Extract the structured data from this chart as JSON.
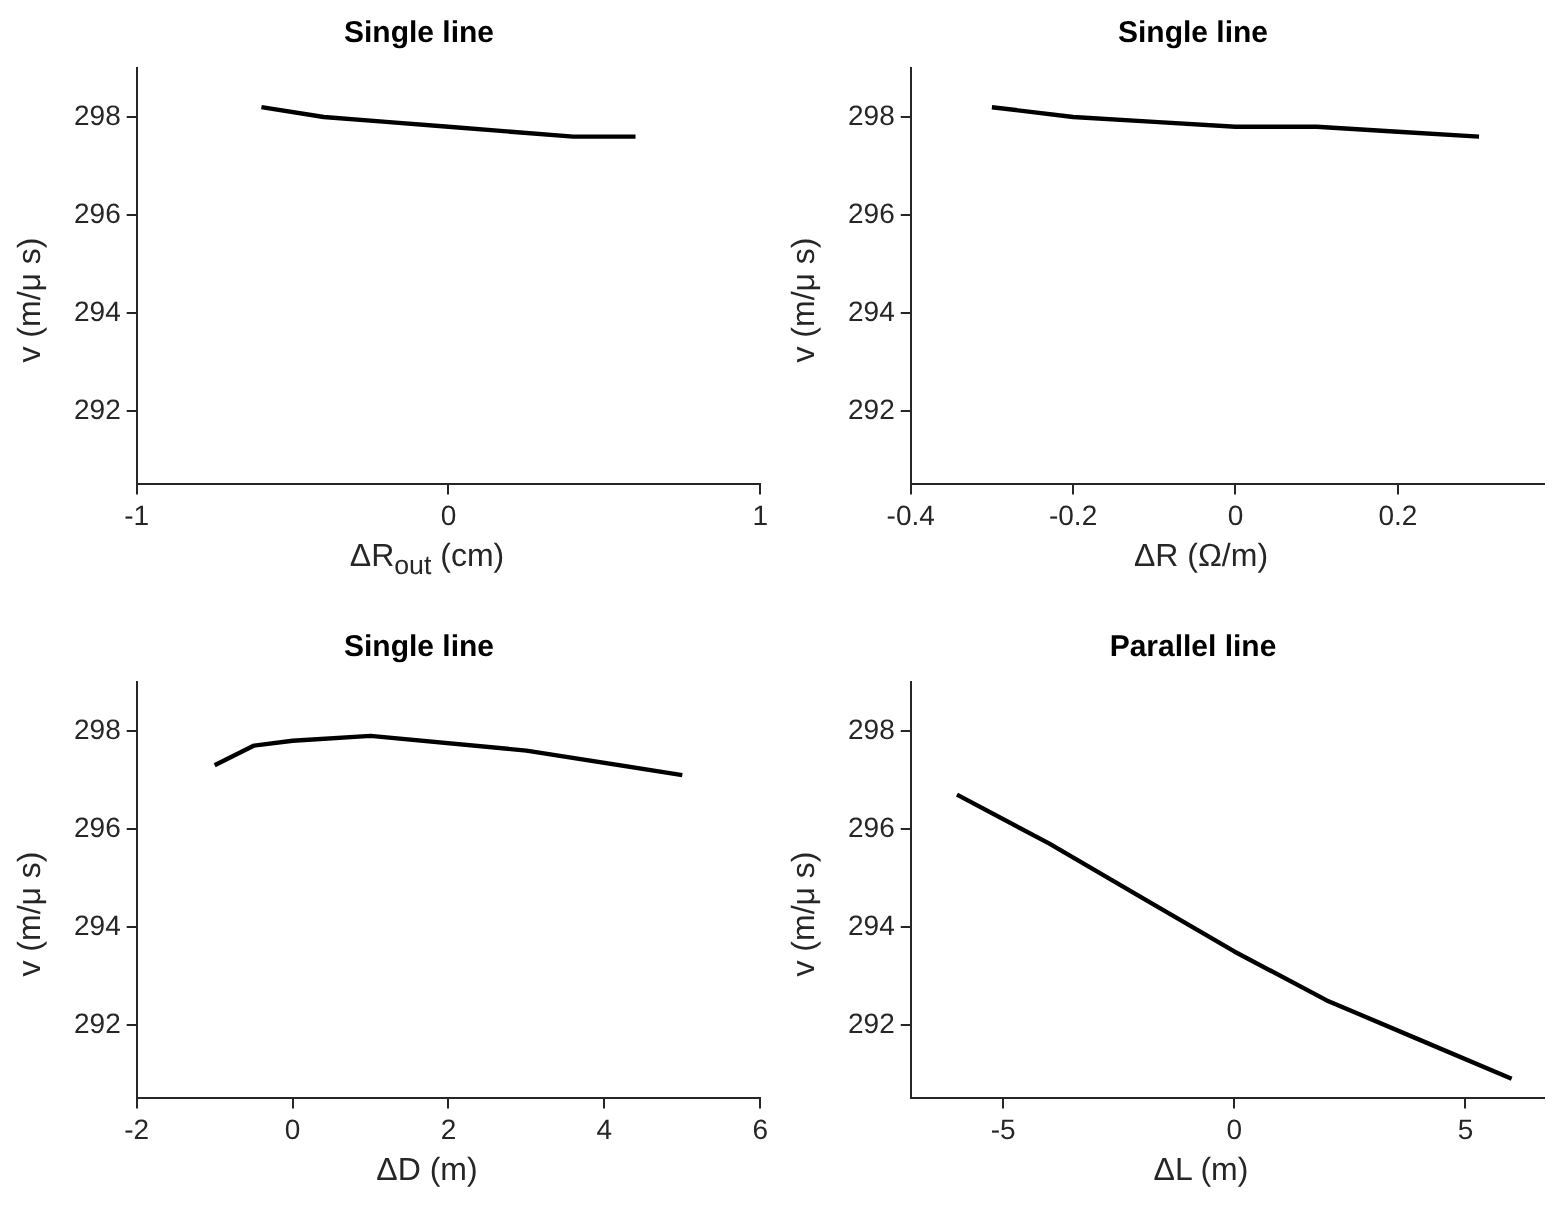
{
  "chart_data": [
    {
      "type": "line",
      "title": "Single line",
      "xlabel": "ΔR$_{out}$ (cm)",
      "ylabel": "v (m/μ s)",
      "xlim": [
        -1,
        1
      ],
      "xticks": [
        -1,
        0,
        1
      ],
      "ylim": [
        290.5,
        299
      ],
      "yticks": [
        292,
        294,
        296,
        298
      ],
      "grid": false,
      "legend": false,
      "series": [
        {
          "color": "#000000",
          "x": [
            -0.6,
            -0.4,
            -0.2,
            0,
            0.2,
            0.4,
            0.6
          ],
          "values": [
            298.2,
            298.0,
            297.9,
            297.8,
            297.7,
            297.6,
            297.6
          ]
        }
      ]
    },
    {
      "type": "line",
      "title": "Single line",
      "xlabel": "ΔR (Ω/m)",
      "ylabel": "v (m/μ s)",
      "xlim": [
        -0.4,
        0.38
      ],
      "xticks": [
        -0.4,
        -0.2,
        0,
        0.2
      ],
      "ylim": [
        290.5,
        299
      ],
      "yticks": [
        292,
        294,
        296,
        298
      ],
      "grid": false,
      "legend": false,
      "series": [
        {
          "color": "#000000",
          "x": [
            -0.3,
            -0.2,
            -0.1,
            0,
            0.1,
            0.2,
            0.3
          ],
          "values": [
            298.2,
            298.0,
            297.9,
            297.8,
            297.8,
            297.7,
            297.6
          ]
        }
      ]
    },
    {
      "type": "line",
      "title": "Single line",
      "xlabel": "ΔD (m)",
      "ylabel": "v (m/μ s)",
      "xlim": [
        -2,
        6
      ],
      "xticks": [
        -2,
        0,
        2,
        4,
        6
      ],
      "ylim": [
        290.5,
        299
      ],
      "yticks": [
        292,
        294,
        296,
        298
      ],
      "grid": false,
      "legend": false,
      "series": [
        {
          "color": "#000000",
          "x": [
            -1,
            -0.5,
            0,
            1,
            3,
            5
          ],
          "values": [
            297.3,
            297.7,
            297.8,
            297.9,
            297.6,
            297.1
          ]
        }
      ]
    },
    {
      "type": "line",
      "title": "Parallel line",
      "xlabel": "ΔL (m)",
      "ylabel": "v (m/μ s)",
      "xlim": [
        -7,
        6.7
      ],
      "xticks": [
        -5,
        0,
        5
      ],
      "ylim": [
        290.5,
        299
      ],
      "yticks": [
        292,
        294,
        296,
        298
      ],
      "grid": false,
      "legend": false,
      "series": [
        {
          "color": "#000000",
          "x": [
            -6,
            -4,
            -2,
            0,
            2,
            4,
            6
          ],
          "values": [
            296.7,
            295.7,
            294.6,
            293.5,
            292.5,
            291.7,
            290.9
          ]
        }
      ]
    }
  ]
}
